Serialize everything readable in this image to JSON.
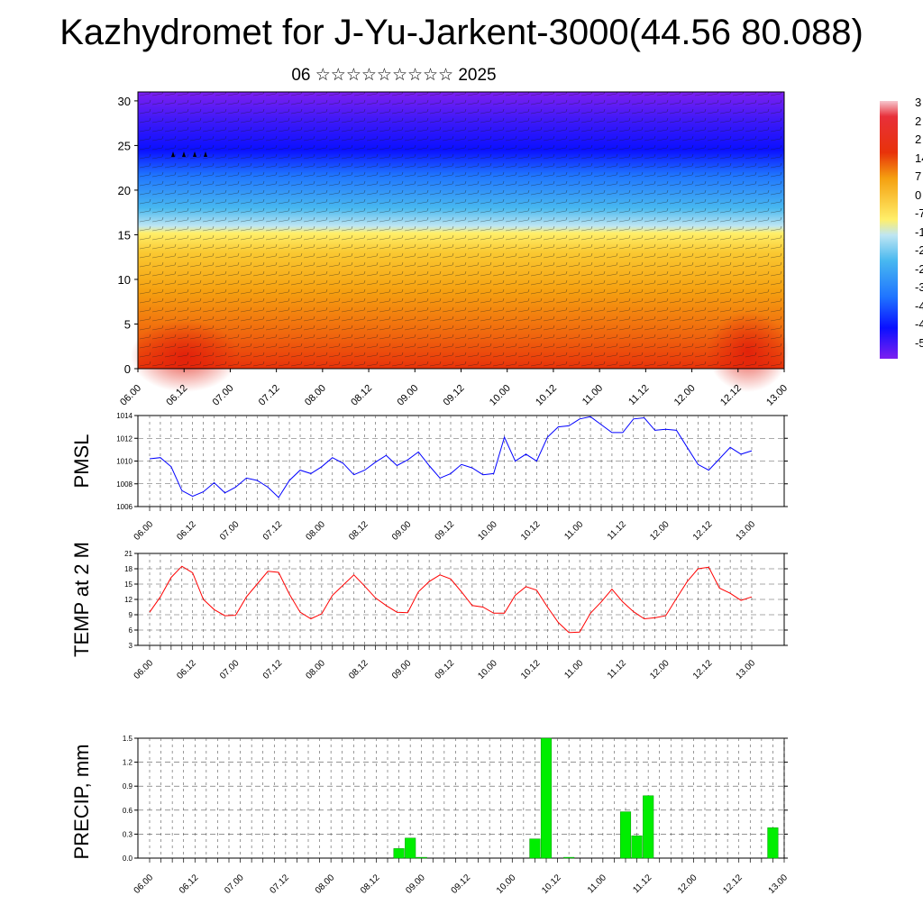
{
  "title": "Kazhydromet for J-Yu-Jarkent-3000(44.56 80.088)",
  "subtitle": "06 ☆☆☆☆☆☆☆☆☆ 2025",
  "chart_data": [
    {
      "type": "heatmap",
      "name": "cross-section",
      "x_ticks": [
        "06.00",
        "06.12",
        "07.00",
        "07.12",
        "08.00",
        "08.12",
        "09.00",
        "09.12",
        "10.00",
        "10.12",
        "11.00",
        "11.12",
        "12.00",
        "12.12",
        "13.00"
      ],
      "y_ticks": [
        "0",
        "5",
        "10",
        "15",
        "20",
        "25",
        "30"
      ],
      "ylim": [
        0,
        31
      ],
      "colorbar_labels": [
        "3",
        "2",
        "2",
        "14",
        "7",
        "0",
        "-7",
        "-1",
        "-2",
        "-2",
        "-3",
        "-4",
        "-4",
        "-5"
      ],
      "colors": {
        "warm": "#e8320a",
        "orange": "#f5a010",
        "yellow": "#ffef6a",
        "lightblue": "#bfe6f2",
        "blue": "#1f74ff",
        "darkblue": "#0a10ff",
        "purple": "#7c1ff0"
      }
    },
    {
      "type": "line",
      "ylabel": "PMSL",
      "x_ticks": [
        "06.00",
        "06.12",
        "07.00",
        "07.12",
        "08.00",
        "08.12",
        "09.00",
        "09.12",
        "10.00",
        "10.12",
        "11.00",
        "11.12",
        "12.00",
        "12.12",
        "13.00"
      ],
      "ylim": [
        1006,
        1014
      ],
      "y_ticks": [
        "1006",
        "1008",
        "1010",
        "1012",
        "1014"
      ],
      "color": "#0000ff",
      "values": [
        1010.2,
        1010.3,
        1009.5,
        1007.4,
        1006.9,
        1007.3,
        1008.1,
        1007.2,
        1007.7,
        1008.5,
        1008.3,
        1007.7,
        1006.8,
        1008.3,
        1009.2,
        1008.9,
        1009.5,
        1010.3,
        1009.8,
        1008.8,
        1009.2,
        1009.9,
        1010.5,
        1009.6,
        1010.1,
        1010.8,
        1009.6,
        1008.5,
        1008.9,
        1009.7,
        1009.4,
        1008.8,
        1008.9,
        1012.1,
        1010.0,
        1010.6,
        1010.0,
        1012.1,
        1013.0,
        1013.1,
        1013.7,
        1013.9,
        1013.2,
        1012.5,
        1012.5,
        1013.7,
        1013.8,
        1012.7,
        1012.8,
        1012.7,
        1011.2,
        1009.7,
        1009.2,
        1010.2,
        1011.2,
        1010.6,
        1010.9
      ]
    },
    {
      "type": "line",
      "ylabel": "TEMP at 2 M",
      "x_ticks": [
        "06.00",
        "06.12",
        "07.00",
        "07.12",
        "08.00",
        "08.12",
        "09.00",
        "09.12",
        "10.00",
        "10.12",
        "11.00",
        "11.12",
        "12.00",
        "12.12",
        "13.00"
      ],
      "ylim": [
        3,
        21
      ],
      "y_ticks": [
        "3",
        "6",
        "9",
        "12",
        "15",
        "18",
        "21"
      ],
      "color": "#ff0000",
      "values": [
        9.5,
        12.5,
        16.3,
        18.5,
        17.2,
        12.0,
        10.0,
        8.8,
        8.9,
        12.5,
        15.0,
        17.5,
        17.3,
        13.0,
        9.5,
        8.2,
        9.2,
        12.8,
        14.8,
        16.8,
        14.6,
        12.3,
        10.8,
        9.5,
        9.4,
        13.5,
        15.5,
        16.8,
        16.0,
        13.5,
        10.8,
        10.5,
        9.3,
        9.3,
        12.8,
        14.5,
        13.8,
        10.5,
        7.5,
        5.5,
        5.6,
        9.3,
        11.5,
        14.0,
        11.5,
        9.6,
        8.2,
        8.4,
        8.8,
        12.2,
        15.5,
        18.0,
        18.3,
        14.2,
        13.2,
        11.8,
        12.5
      ]
    },
    {
      "type": "bar",
      "ylabel": "PRECIP, mm",
      "x_ticks": [
        "06.00",
        "06.12",
        "07.00",
        "07.12",
        "08.00",
        "08.12",
        "09.00",
        "09.12",
        "10.00",
        "10.12",
        "11.00",
        "11.12",
        "12.00",
        "12.12",
        "13.00"
      ],
      "ylim": [
        0,
        1.5
      ],
      "y_ticks": [
        "0.0",
        "0.3",
        "0.6",
        "0.9",
        "1.2",
        "1.5"
      ],
      "color": "#00ee00",
      "step_hours": 3,
      "values": [
        0,
        0,
        0,
        0,
        0,
        0,
        0,
        0,
        0,
        0,
        0,
        0,
        0,
        0,
        0,
        0,
        0,
        0,
        0,
        0,
        0,
        0,
        0.12,
        0.25,
        0.01,
        0,
        0,
        0,
        0,
        0,
        0,
        0,
        0,
        0,
        0.24,
        1.5,
        0,
        0.01,
        0,
        0,
        0,
        0,
        0.58,
        0.28,
        0.78,
        0,
        0,
        0,
        0,
        0,
        0,
        0,
        0,
        0,
        0,
        0.38,
        0
      ]
    }
  ]
}
